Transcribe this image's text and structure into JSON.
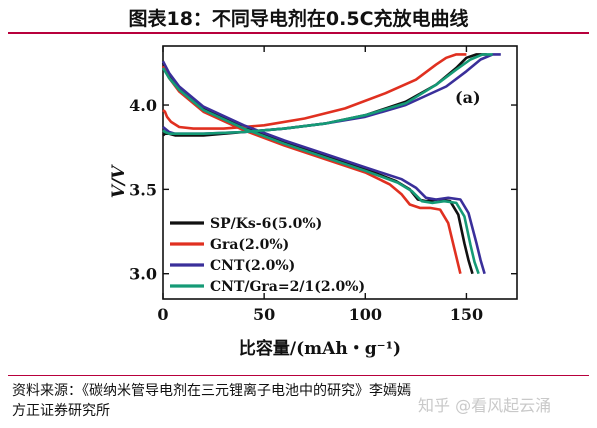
{
  "page_title": "图表18：不同导电剂在0.5C充放电曲线",
  "source_lines": [
    "资料来源：《碳纳米管导电剂在三元锂离子电池中的研究》李嫣嫣",
    "方正证券研究所"
  ],
  "watermark": "知乎 @看风起云涌",
  "chart_data": {
    "type": "line",
    "title": "",
    "panel_label": "(a)",
    "xlabel": "比容量/(mAh・g⁻¹)",
    "ylabel": "V/V",
    "xlim": [
      0,
      175
    ],
    "ylim": [
      2.85,
      4.35
    ],
    "xticks": [
      0,
      50,
      100,
      150
    ],
    "yticks": [
      3.0,
      3.5,
      4.0
    ],
    "ytick_labels": [
      "3.0",
      "3.5",
      "4.0"
    ],
    "grid": false,
    "legend_position": "bottom-left",
    "series": [
      {
        "name": "SP/Ks-6(5.0%)",
        "color": "#111111",
        "charge": {
          "x": [
            0,
            1,
            3,
            6,
            10,
            20,
            40,
            60,
            80,
            100,
            120,
            135,
            145,
            150,
            155,
            160
          ],
          "y": [
            3.82,
            3.83,
            3.83,
            3.82,
            3.82,
            3.82,
            3.84,
            3.86,
            3.89,
            3.94,
            4.02,
            4.12,
            4.22,
            4.28,
            4.3,
            4.3
          ]
        },
        "discharge": {
          "x": [
            0,
            3,
            8,
            20,
            40,
            60,
            80,
            100,
            115,
            122,
            126,
            130,
            136,
            142,
            146,
            149,
            151,
            153
          ],
          "y": [
            4.25,
            4.18,
            4.1,
            3.98,
            3.87,
            3.78,
            3.7,
            3.62,
            3.55,
            3.5,
            3.44,
            3.43,
            3.44,
            3.43,
            3.35,
            3.18,
            3.08,
            3.0
          ]
        }
      },
      {
        "name": "Gra(2.0%)",
        "color": "#e03020",
        "charge": {
          "x": [
            0,
            1,
            2,
            4,
            8,
            15,
            30,
            50,
            70,
            90,
            110,
            125,
            135,
            140,
            145,
            150
          ],
          "y": [
            3.97,
            3.96,
            3.93,
            3.9,
            3.87,
            3.86,
            3.86,
            3.88,
            3.92,
            3.98,
            4.07,
            4.15,
            4.24,
            4.28,
            4.3,
            4.3
          ]
        },
        "discharge": {
          "x": [
            0,
            3,
            8,
            20,
            40,
            60,
            80,
            100,
            112,
            118,
            122,
            127,
            132,
            137,
            141,
            144,
            147
          ],
          "y": [
            4.23,
            4.16,
            4.08,
            3.96,
            3.85,
            3.76,
            3.68,
            3.6,
            3.53,
            3.47,
            3.41,
            3.39,
            3.39,
            3.38,
            3.3,
            3.15,
            3.0
          ]
        }
      },
      {
        "name": "CNT(2.0%)",
        "color": "#3a2f9a",
        "charge": {
          "x": [
            0,
            1,
            3,
            6,
            10,
            20,
            40,
            60,
            80,
            100,
            120,
            140,
            150,
            157,
            163,
            167
          ],
          "y": [
            3.87,
            3.86,
            3.84,
            3.83,
            3.83,
            3.83,
            3.84,
            3.86,
            3.89,
            3.93,
            4.0,
            4.11,
            4.2,
            4.27,
            4.3,
            4.3
          ]
        },
        "discharge": {
          "x": [
            0,
            3,
            8,
            20,
            40,
            60,
            80,
            100,
            118,
            125,
            130,
            135,
            141,
            147,
            151,
            155,
            157,
            159
          ],
          "y": [
            4.26,
            4.19,
            4.11,
            3.99,
            3.88,
            3.79,
            3.71,
            3.63,
            3.56,
            3.51,
            3.45,
            3.44,
            3.45,
            3.44,
            3.36,
            3.18,
            3.08,
            3.0
          ]
        }
      },
      {
        "name": "CNT/Gra=2/1(2.0%)",
        "color": "#159a76",
        "charge": {
          "x": [
            0,
            1,
            3,
            6,
            10,
            20,
            40,
            60,
            80,
            100,
            120,
            135,
            145,
            152,
            158,
            163
          ],
          "y": [
            3.85,
            3.84,
            3.83,
            3.83,
            3.83,
            3.83,
            3.84,
            3.86,
            3.89,
            3.94,
            4.01,
            4.12,
            4.21,
            4.27,
            4.3,
            4.3
          ]
        },
        "discharge": {
          "x": [
            0,
            3,
            8,
            20,
            40,
            60,
            80,
            100,
            116,
            123,
            128,
            133,
            139,
            145,
            149,
            152,
            154,
            156
          ],
          "y": [
            4.22,
            4.16,
            4.09,
            3.97,
            3.86,
            3.77,
            3.69,
            3.61,
            3.54,
            3.49,
            3.43,
            3.42,
            3.43,
            3.42,
            3.34,
            3.17,
            3.07,
            3.0
          ]
        }
      }
    ]
  }
}
